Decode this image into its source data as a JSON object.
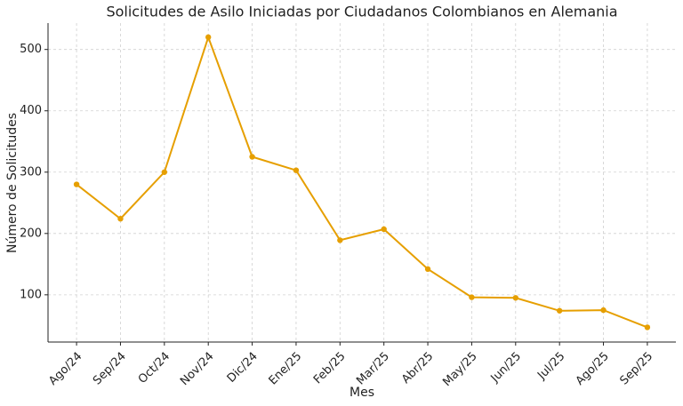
{
  "chart_data": {
    "type": "line",
    "title": "Solicitudes de Asilo Iniciadas por Ciudadanos Colombianos en Alemania",
    "x_label": "Mes",
    "y_label": "Número de Solicitudes",
    "categories": [
      "Ago/24",
      "Sep/24",
      "Oct/24",
      "Nov/24",
      "Dic/24",
      "Ene/25",
      "Feb/25",
      "Mar/25",
      "Abr/25",
      "May/25",
      "Jun/25",
      "Jul/25",
      "Ago/25",
      "Sep/25"
    ],
    "values": [
      280,
      224,
      300,
      520,
      325,
      303,
      189,
      207,
      142,
      96,
      95,
      74,
      75,
      47
    ],
    "color": "#e69f00",
    "ylim": [
      23,
      543
    ],
    "yticks": [
      100,
      200,
      300,
      400,
      500
    ],
    "grid": true
  }
}
